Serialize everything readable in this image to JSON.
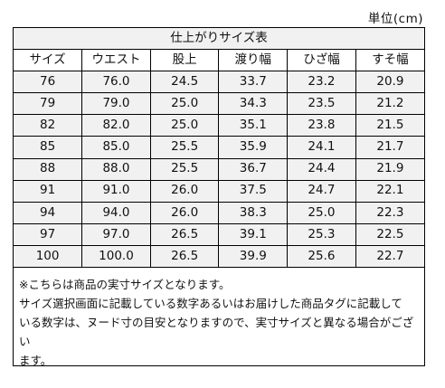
{
  "unit_label": "単位(cm)",
  "table": {
    "title": "仕上がりサイズ表",
    "headers": [
      "サイズ",
      "ウエスト",
      "股上",
      "渡り幅",
      "ひざ幅",
      "すそ幅"
    ],
    "rows": [
      [
        "76",
        "76.0",
        "24.5",
        "33.7",
        "23.2",
        "20.9"
      ],
      [
        "79",
        "79.0",
        "25.0",
        "34.3",
        "23.5",
        "21.2"
      ],
      [
        "82",
        "82.0",
        "25.0",
        "35.1",
        "23.8",
        "21.5"
      ],
      [
        "85",
        "85.0",
        "25.5",
        "35.9",
        "24.1",
        "21.7"
      ],
      [
        "88",
        "88.0",
        "25.5",
        "36.7",
        "24.4",
        "21.9"
      ],
      [
        "91",
        "91.0",
        "26.0",
        "37.5",
        "24.7",
        "22.1"
      ],
      [
        "94",
        "94.0",
        "26.0",
        "38.3",
        "25.0",
        "22.3"
      ],
      [
        "97",
        "97.0",
        "26.5",
        "39.1",
        "25.3",
        "22.5"
      ],
      [
        "100",
        "100.0",
        "26.5",
        "39.9",
        "25.6",
        "22.7"
      ]
    ]
  },
  "notes": [
    "※こちらは商品の実寸サイズとなります。",
    "サイズ選択画面に記載している数字あるいはお届けした商品タグに記載して",
    "いる数字は、ヌード寸の目安となりますので、実寸サイズと異なる場合がござい",
    "ます。"
  ]
}
